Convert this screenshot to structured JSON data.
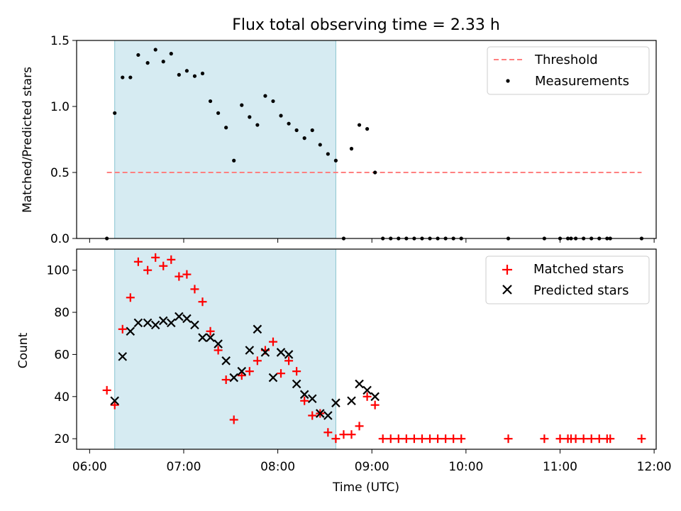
{
  "chart_data": {
    "type": "scatter",
    "title": "Flux total observing time = 2.33 h",
    "x_label": "Time (UTC)",
    "x_range": [
      "06:00",
      "12:00"
    ],
    "x_ticks": [
      "06:00",
      "07:00",
      "08:00",
      "09:00",
      "10:00",
      "11:00",
      "12:00"
    ],
    "shaded_interval": {
      "start": "06:16",
      "end": "08:37"
    },
    "panels": [
      {
        "ylabel": "Matched/Predicted stars",
        "ylim": [
          0,
          1.5
        ],
        "yticks": [
          "0.0",
          "0.5",
          "1.0",
          "1.5"
        ],
        "legend_position": "upper right",
        "threshold": {
          "name": "Threshold",
          "value": 0.5,
          "x_start": "06:11",
          "x_end": "11:52",
          "color": "#ff8080"
        },
        "series": [
          {
            "name": "Measurements",
            "marker": "dot",
            "color": "#000000",
            "points": [
              [
                "06:11",
                0.0
              ],
              [
                "06:16",
                0.95
              ],
              [
                "06:21",
                1.22
              ],
              [
                "06:26",
                1.22
              ],
              [
                "06:31",
                1.39
              ],
              [
                "06:37",
                1.33
              ],
              [
                "06:42",
                1.43
              ],
              [
                "06:47",
                1.34
              ],
              [
                "06:52",
                1.4
              ],
              [
                "06:57",
                1.24
              ],
              [
                "07:02",
                1.27
              ],
              [
                "07:07",
                1.23
              ],
              [
                "07:12",
                1.25
              ],
              [
                "07:17",
                1.04
              ],
              [
                "07:22",
                0.95
              ],
              [
                "07:27",
                0.84
              ],
              [
                "07:32",
                0.59
              ],
              [
                "07:37",
                1.01
              ],
              [
                "07:42",
                0.92
              ],
              [
                "07:47",
                0.86
              ],
              [
                "07:52",
                1.08
              ],
              [
                "07:57",
                1.04
              ],
              [
                "08:02",
                0.93
              ],
              [
                "08:07",
                0.87
              ],
              [
                "08:12",
                0.82
              ],
              [
                "08:17",
                0.76
              ],
              [
                "08:22",
                0.82
              ],
              [
                "08:27",
                0.71
              ],
              [
                "08:32",
                0.64
              ],
              [
                "08:37",
                0.59
              ],
              [
                "08:42",
                0.0
              ],
              [
                "08:47",
                0.68
              ],
              [
                "08:52",
                0.86
              ],
              [
                "08:57",
                0.83
              ],
              [
                "09:02",
                0.5
              ],
              [
                "09:07",
                0.0
              ],
              [
                "09:12",
                0.0
              ],
              [
                "09:17",
                0.0
              ],
              [
                "09:22",
                0.0
              ],
              [
                "09:27",
                0.0
              ],
              [
                "09:32",
                0.0
              ],
              [
                "09:37",
                0.0
              ],
              [
                "09:42",
                0.0
              ],
              [
                "09:47",
                0.0
              ],
              [
                "09:52",
                0.0
              ],
              [
                "09:57",
                0.0
              ],
              [
                "10:27",
                0.0
              ],
              [
                "10:50",
                0.0
              ],
              [
                "11:00",
                0.0
              ],
              [
                "11:05",
                0.0
              ],
              [
                "11:07",
                0.0
              ],
              [
                "11:10",
                0.0
              ],
              [
                "11:15",
                0.0
              ],
              [
                "11:20",
                0.0
              ],
              [
                "11:25",
                0.0
              ],
              [
                "11:30",
                0.0
              ],
              [
                "11:32",
                0.0
              ],
              [
                "11:52",
                0.0
              ]
            ]
          }
        ]
      },
      {
        "ylabel": "Count",
        "ylim": [
          15,
          110
        ],
        "yticks": [
          "20",
          "40",
          "60",
          "80",
          "100"
        ],
        "legend_position": "upper right",
        "series": [
          {
            "name": "Matched stars",
            "marker": "plus",
            "color": "#ff0000",
            "points": [
              [
                "06:11",
                43
              ],
              [
                "06:16",
                36
              ],
              [
                "06:21",
                72
              ],
              [
                "06:26",
                87
              ],
              [
                "06:31",
                104
              ],
              [
                "06:37",
                100
              ],
              [
                "06:42",
                106
              ],
              [
                "06:47",
                102
              ],
              [
                "06:52",
                105
              ],
              [
                "06:57",
                97
              ],
              [
                "07:02",
                98
              ],
              [
                "07:07",
                91
              ],
              [
                "07:12",
                85
              ],
              [
                "07:17",
                71
              ],
              [
                "07:22",
                62
              ],
              [
                "07:27",
                48
              ],
              [
                "07:32",
                29
              ],
              [
                "07:37",
                50
              ],
              [
                "07:42",
                52
              ],
              [
                "07:47",
                57
              ],
              [
                "07:52",
                62
              ],
              [
                "07:57",
                66
              ],
              [
                "08:02",
                51
              ],
              [
                "08:07",
                57
              ],
              [
                "08:12",
                52
              ],
              [
                "08:17",
                38
              ],
              [
                "08:22",
                31
              ],
              [
                "08:27",
                32
              ],
              [
                "08:32",
                23
              ],
              [
                "08:37",
                20
              ],
              [
                "08:42",
                22
              ],
              [
                "08:47",
                22
              ],
              [
                "08:52",
                26
              ],
              [
                "08:57",
                40
              ],
              [
                "09:02",
                36
              ],
              [
                "09:07",
                20
              ],
              [
                "09:12",
                20
              ],
              [
                "09:17",
                20
              ],
              [
                "09:22",
                20
              ],
              [
                "09:27",
                20
              ],
              [
                "09:32",
                20
              ],
              [
                "09:37",
                20
              ],
              [
                "09:42",
                20
              ],
              [
                "09:47",
                20
              ],
              [
                "09:52",
                20
              ],
              [
                "09:57",
                20
              ],
              [
                "10:27",
                20
              ],
              [
                "10:50",
                20
              ],
              [
                "11:00",
                20
              ],
              [
                "11:05",
                20
              ],
              [
                "11:07",
                20
              ],
              [
                "11:10",
                20
              ],
              [
                "11:15",
                20
              ],
              [
                "11:20",
                20
              ],
              [
                "11:25",
                20
              ],
              [
                "11:30",
                20
              ],
              [
                "11:32",
                20
              ],
              [
                "11:52",
                20
              ]
            ]
          },
          {
            "name": "Predicted stars",
            "marker": "x",
            "color": "#000000",
            "points": [
              [
                "06:16",
                38
              ],
              [
                "06:21",
                59
              ],
              [
                "06:26",
                71
              ],
              [
                "06:31",
                75
              ],
              [
                "06:37",
                75
              ],
              [
                "06:42",
                74
              ],
              [
                "06:47",
                76
              ],
              [
                "06:52",
                75
              ],
              [
                "06:57",
                78
              ],
              [
                "07:02",
                77
              ],
              [
                "07:07",
                74
              ],
              [
                "07:12",
                68
              ],
              [
                "07:17",
                68
              ],
              [
                "07:22",
                65
              ],
              [
                "07:27",
                57
              ],
              [
                "07:32",
                49
              ],
              [
                "07:37",
                52
              ],
              [
                "07:42",
                62
              ],
              [
                "07:47",
                72
              ],
              [
                "07:52",
                61
              ],
              [
                "07:57",
                49
              ],
              [
                "08:02",
                61
              ],
              [
                "08:07",
                60
              ],
              [
                "08:12",
                46
              ],
              [
                "08:17",
                41
              ],
              [
                "08:22",
                39
              ],
              [
                "08:27",
                32
              ],
              [
                "08:32",
                31
              ],
              [
                "08:37",
                37
              ],
              [
                "08:47",
                38
              ],
              [
                "08:52",
                46
              ],
              [
                "08:57",
                43
              ],
              [
                "09:02",
                40
              ]
            ]
          }
        ]
      }
    ]
  }
}
